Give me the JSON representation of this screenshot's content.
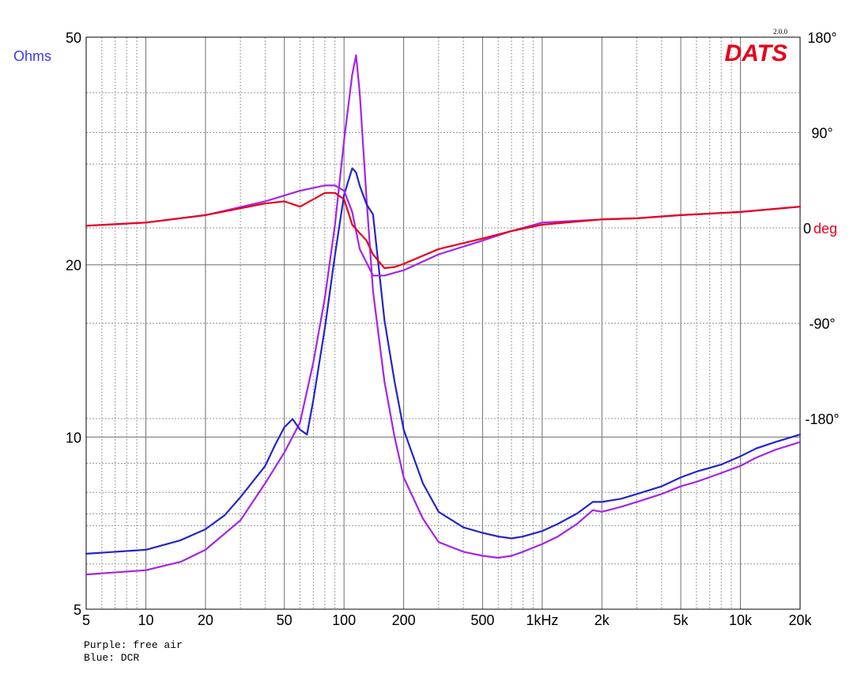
{
  "chart_data": {
    "type": "line",
    "brand": {
      "name": "DATS",
      "version": "2.0.0",
      "color": "#e8001c"
    },
    "x_axis": {
      "scale": "log",
      "range": [
        5,
        20000
      ],
      "tick_labels": [
        {
          "value": 5,
          "label": "5"
        },
        {
          "value": 10,
          "label": "10"
        },
        {
          "value": 20,
          "label": "20"
        },
        {
          "value": 50,
          "label": "50"
        },
        {
          "value": 100,
          "label": "100"
        },
        {
          "value": 200,
          "label": "200"
        },
        {
          "value": 500,
          "label": "500"
        },
        {
          "value": 1000,
          "label": "1kHz"
        },
        {
          "value": 2000,
          "label": "2k"
        },
        {
          "value": 5000,
          "label": "5k"
        },
        {
          "value": 10000,
          "label": "10k"
        },
        {
          "value": 20000,
          "label": "20k"
        }
      ]
    },
    "y_axis_left": {
      "label": "Ohms",
      "label_color": "#3a3ae8",
      "scale": "log",
      "range": [
        5,
        50
      ],
      "tick_labels": [
        {
          "value": 5,
          "label": "5"
        },
        {
          "value": 10,
          "label": "10"
        },
        {
          "value": 20,
          "label": "20"
        },
        {
          "value": 50,
          "label": "50"
        }
      ]
    },
    "y_axis_right": {
      "label_number": "0",
      "label_unit": "deg",
      "unit_color": "#e8001c",
      "range": [
        -360,
        180
      ],
      "tick_labels": [
        {
          "value": 180,
          "label": "180°"
        },
        {
          "value": 90,
          "label": "90°"
        },
        {
          "value": -90,
          "label": "-90°"
        },
        {
          "value": -180,
          "label": "-180°"
        }
      ]
    },
    "grid": true,
    "series": [
      {
        "key": "purple_impedance",
        "color": "#a424e6",
        "axis": "left",
        "points": [
          [
            5,
            5.75
          ],
          [
            10,
            5.85
          ],
          [
            15,
            6.05
          ],
          [
            20,
            6.35
          ],
          [
            30,
            7.15
          ],
          [
            40,
            8.3
          ],
          [
            50,
            9.4
          ],
          [
            60,
            10.6
          ],
          [
            70,
            13.5
          ],
          [
            80,
            17.5
          ],
          [
            90,
            23.5
          ],
          [
            100,
            33
          ],
          [
            110,
            43
          ],
          [
            115,
            46.5
          ],
          [
            120,
            40
          ],
          [
            130,
            26
          ],
          [
            140,
            18
          ],
          [
            160,
            12.5
          ],
          [
            180,
            10
          ],
          [
            200,
            8.5
          ],
          [
            250,
            7.2
          ],
          [
            300,
            6.55
          ],
          [
            400,
            6.3
          ],
          [
            500,
            6.2
          ],
          [
            600,
            6.15
          ],
          [
            700,
            6.2
          ],
          [
            800,
            6.3
          ],
          [
            1000,
            6.5
          ],
          [
            1200,
            6.7
          ],
          [
            1500,
            7.05
          ],
          [
            1800,
            7.45
          ],
          [
            2000,
            7.4
          ],
          [
            2500,
            7.55
          ],
          [
            3000,
            7.7
          ],
          [
            4000,
            7.95
          ],
          [
            5000,
            8.2
          ],
          [
            6000,
            8.35
          ],
          [
            8000,
            8.65
          ],
          [
            10000,
            8.9
          ],
          [
            12000,
            9.2
          ],
          [
            15000,
            9.5
          ],
          [
            20000,
            9.8
          ]
        ]
      },
      {
        "key": "blue_impedance",
        "color": "#2424cc",
        "axis": "left",
        "points": [
          [
            5,
            6.25
          ],
          [
            10,
            6.35
          ],
          [
            15,
            6.6
          ],
          [
            20,
            6.9
          ],
          [
            25,
            7.3
          ],
          [
            30,
            7.85
          ],
          [
            40,
            8.9
          ],
          [
            45,
            9.7
          ],
          [
            50,
            10.4
          ],
          [
            55,
            10.75
          ],
          [
            60,
            10.3
          ],
          [
            65,
            10.1
          ],
          [
            70,
            11.6
          ],
          [
            80,
            15.5
          ],
          [
            90,
            20.8
          ],
          [
            100,
            26.5
          ],
          [
            110,
            29.5
          ],
          [
            115,
            29
          ],
          [
            120,
            27.5
          ],
          [
            130,
            25.5
          ],
          [
            140,
            24.5
          ],
          [
            160,
            16
          ],
          [
            180,
            12.5
          ],
          [
            200,
            10.3
          ],
          [
            250,
            8.3
          ],
          [
            300,
            7.4
          ],
          [
            400,
            6.95
          ],
          [
            500,
            6.8
          ],
          [
            600,
            6.7
          ],
          [
            700,
            6.65
          ],
          [
            800,
            6.7
          ],
          [
            1000,
            6.85
          ],
          [
            1200,
            7.05
          ],
          [
            1500,
            7.35
          ],
          [
            1800,
            7.7
          ],
          [
            2000,
            7.7
          ],
          [
            2500,
            7.8
          ],
          [
            3000,
            7.95
          ],
          [
            4000,
            8.2
          ],
          [
            5000,
            8.5
          ],
          [
            6000,
            8.7
          ],
          [
            8000,
            8.95
          ],
          [
            10000,
            9.25
          ],
          [
            12000,
            9.55
          ],
          [
            15000,
            9.8
          ],
          [
            20000,
            10.1
          ]
        ]
      },
      {
        "key": "purple_phase",
        "color": "#a424e6",
        "axis": "right",
        "points": [
          [
            5,
            2
          ],
          [
            10,
            5
          ],
          [
            20,
            12
          ],
          [
            40,
            25
          ],
          [
            60,
            35
          ],
          [
            80,
            40
          ],
          [
            90,
            40
          ],
          [
            100,
            35
          ],
          [
            110,
            15
          ],
          [
            120,
            -20
          ],
          [
            140,
            -45
          ],
          [
            160,
            -45
          ],
          [
            200,
            -40
          ],
          [
            300,
            -25
          ],
          [
            500,
            -12
          ],
          [
            700,
            -3
          ],
          [
            1000,
            5
          ],
          [
            2000,
            8
          ],
          [
            3000,
            9
          ],
          [
            5000,
            12
          ],
          [
            10000,
            15
          ],
          [
            20000,
            20
          ]
        ]
      },
      {
        "key": "red_phase",
        "color": "#e8001c",
        "axis": "right",
        "points": [
          [
            5,
            2
          ],
          [
            10,
            5
          ],
          [
            20,
            12
          ],
          [
            40,
            23
          ],
          [
            50,
            25
          ],
          [
            60,
            20
          ],
          [
            70,
            27
          ],
          [
            80,
            33
          ],
          [
            90,
            33
          ],
          [
            100,
            27
          ],
          [
            110,
            3
          ],
          [
            120,
            -5
          ],
          [
            130,
            -12
          ],
          [
            140,
            -25
          ],
          [
            160,
            -38
          ],
          [
            180,
            -37
          ],
          [
            200,
            -34
          ],
          [
            300,
            -20
          ],
          [
            500,
            -10
          ],
          [
            700,
            -3
          ],
          [
            1000,
            3
          ],
          [
            2000,
            8
          ],
          [
            3000,
            9
          ],
          [
            5000,
            12
          ],
          [
            10000,
            15
          ],
          [
            20000,
            20
          ]
        ]
      }
    ]
  },
  "legend_notes": [
    "Purple: free air",
    "Blue: DCR"
  ]
}
